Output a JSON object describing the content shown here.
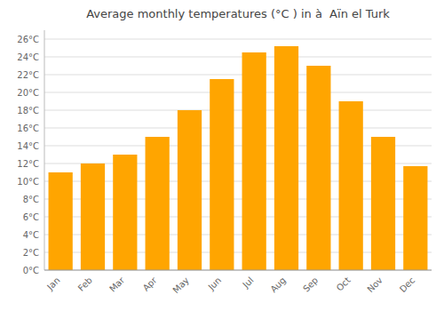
{
  "chart_data": {
    "type": "bar",
    "title": "Average monthly temperatures (°C ) in à  Aïn el Turk",
    "categories": [
      "Jan",
      "Feb",
      "Mar",
      "Apr",
      "May",
      "Jun",
      "Jul",
      "Aug",
      "Sep",
      "Oct",
      "Nov",
      "Dec"
    ],
    "values": [
      11,
      12,
      13,
      15,
      18,
      21.5,
      24.5,
      25.2,
      23,
      19,
      15,
      11.7
    ],
    "color": "#FFA500",
    "ylim": [
      0,
      27
    ],
    "yticks": [
      {
        "value": 0,
        "label": "0°C"
      },
      {
        "value": 2,
        "label": "2°C"
      },
      {
        "value": 4,
        "label": "4°C"
      },
      {
        "value": 6,
        "label": "6°C"
      },
      {
        "value": 8,
        "label": "8°C"
      },
      {
        "value": 10,
        "label": "10°C"
      },
      {
        "value": 12,
        "label": "12°C"
      },
      {
        "value": 14,
        "label": "14°C"
      },
      {
        "value": 16,
        "label": "16°C"
      },
      {
        "value": 18,
        "label": "18°C"
      },
      {
        "value": 20,
        "label": "20°C"
      },
      {
        "value": 22,
        "label": "22°C"
      },
      {
        "value": 24,
        "label": "24°C"
      },
      {
        "value": 26,
        "label": "26°C"
      }
    ],
    "grid": true
  }
}
